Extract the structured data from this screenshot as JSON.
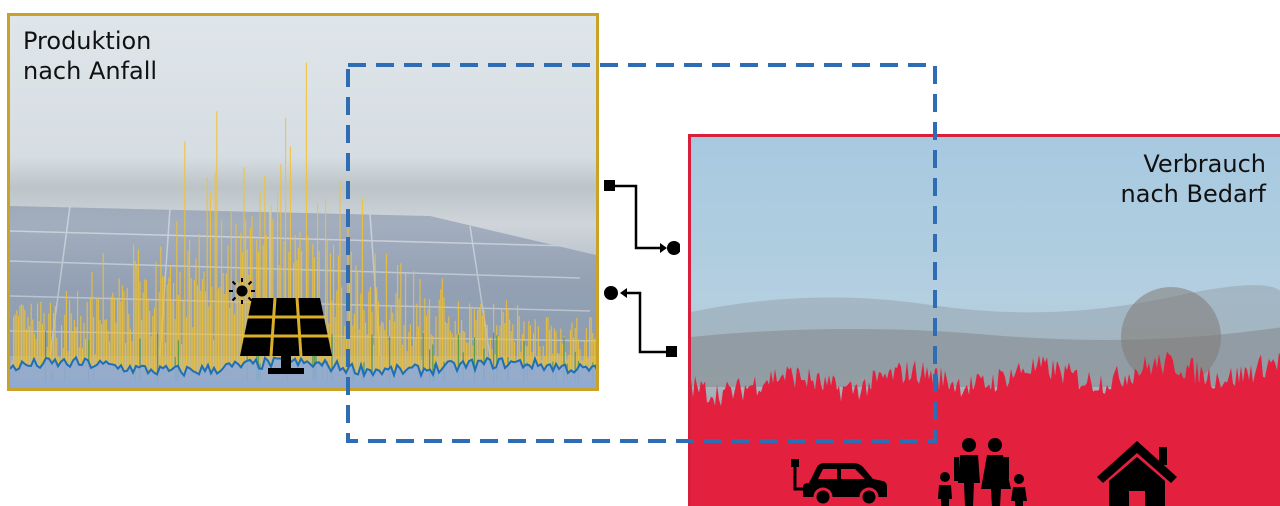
{
  "production": {
    "label": "Produktion\nnach Anfall",
    "border_color": "#c9a227",
    "series_colors": {
      "solar": "#f2c230",
      "base": "#1f6fb5",
      "green": "#4a9a45"
    },
    "icons": [
      "sun-icon",
      "solar-panel-icon"
    ]
  },
  "consumption": {
    "label": "Verbrauch\nnach Bedarf",
    "border_color": "#d81e3a",
    "fill_color": "#e3213f",
    "icons": [
      "electric-car-icon",
      "family-icon",
      "house-icon"
    ]
  },
  "connector": {
    "dash_color": "#2e6db4",
    "icons": [
      "flow-out-icon",
      "flow-in-icon"
    ]
  }
}
